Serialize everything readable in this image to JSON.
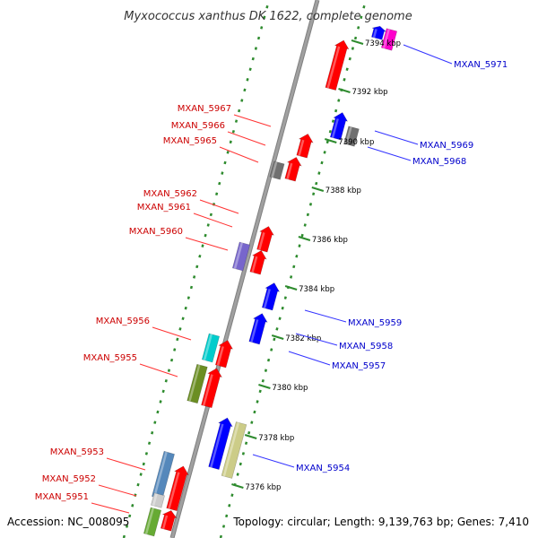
{
  "title": "Myxococcus xanthus DK 1622, complete genome",
  "footer": {
    "accession": "Accession: NC_008095",
    "summary": "Topology: circular; Length: 9,139,763 bp; Genes: 7,410"
  },
  "colors": {
    "backbone": "#a0a0a0",
    "dotted_ring": "#2e8b2e",
    "left_label": "#cc0000",
    "right_label": "#0000cc",
    "red_gene": "#ff0000",
    "blue_gene": "#0000ff"
  },
  "ticks": [
    {
      "label": "7394 kbp",
      "kbp": 7394
    },
    {
      "label": "7392 kbp",
      "kbp": 7392
    },
    {
      "label": "7390 kbp",
      "kbp": 7390
    },
    {
      "label": "7388 kbp",
      "kbp": 7388
    },
    {
      "label": "7386 kbp",
      "kbp": 7386
    },
    {
      "label": "7384 kbp",
      "kbp": 7384
    },
    {
      "label": "7382 kbp",
      "kbp": 7382
    },
    {
      "label": "7380 kbp",
      "kbp": 7380
    },
    {
      "label": "7378 kbp",
      "kbp": 7378
    },
    {
      "label": "7376 kbp",
      "kbp": 7376
    }
  ],
  "left_labels": [
    {
      "text": "MXAN_5967"
    },
    {
      "text": "MXAN_5966"
    },
    {
      "text": "MXAN_5965"
    },
    {
      "text": "MXAN_5962"
    },
    {
      "text": "MXAN_5961"
    },
    {
      "text": "MXAN_5960"
    },
    {
      "text": "MXAN_5956"
    },
    {
      "text": "MXAN_5955"
    },
    {
      "text": "MXAN_5953"
    },
    {
      "text": "MXAN_5952"
    },
    {
      "text": "MXAN_5951"
    }
  ],
  "right_labels": [
    {
      "text": "MXAN_5971"
    },
    {
      "text": "MXAN_5969"
    },
    {
      "text": "MXAN_5968"
    },
    {
      "text": "MXAN_5959"
    },
    {
      "text": "MXAN_5958"
    },
    {
      "text": "MXAN_5957"
    },
    {
      "text": "MXAN_5954"
    }
  ]
}
